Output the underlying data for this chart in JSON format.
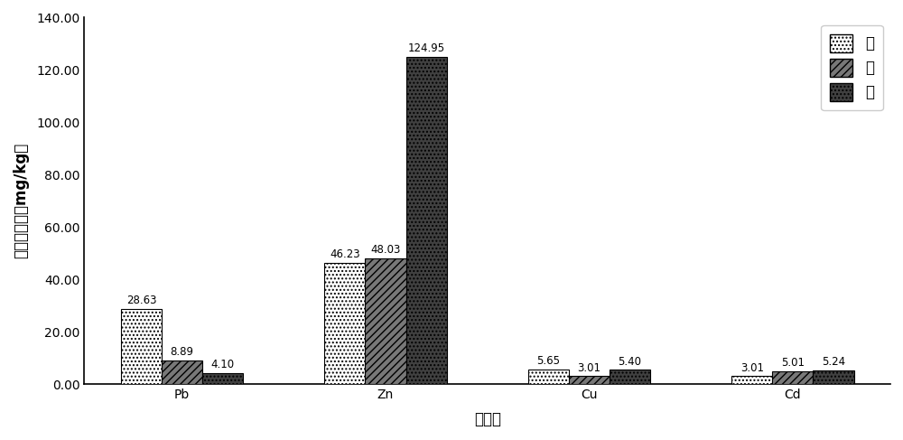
{
  "categories": [
    "Pb",
    "Zn",
    "Cu",
    "Cd"
  ],
  "series": {
    "根": [
      28.63,
      46.23,
      5.65,
      3.01
    ],
    "茎": [
      8.89,
      48.03,
      3.01,
      5.01
    ],
    "叶": [
      4.1,
      124.95,
      5.4,
      5.24
    ]
  },
  "annotations": {
    "根": [
      "28.63",
      "46.23",
      "5.65",
      "3.01"
    ],
    "茎": [
      "8.89",
      "48.03",
      "3.01",
      "5.01"
    ],
    "叶": [
      "4.10",
      "124.95",
      "5.40",
      "5.24"
    ]
  },
  "hatch_patterns": [
    "....",
    "////",
    "...."
  ],
  "facecolors": [
    "#ffffff",
    "#787878",
    "#404040"
  ],
  "edgecolors": [
    "#000000",
    "#000000",
    "#000000"
  ],
  "ylabel": "重金属含量（mg/kg）",
  "xlabel": "重金属",
  "ylim": [
    0,
    140
  ],
  "yticks": [
    0.0,
    20.0,
    40.0,
    60.0,
    80.0,
    100.0,
    120.0,
    140.0
  ],
  "ytick_labels": [
    "0.00",
    "20.00",
    "40.00",
    "60.00",
    "80.00",
    "100.00",
    "120.00",
    "140.00"
  ],
  "legend_labels": [
    "根",
    "茎",
    "叶"
  ],
  "bar_width": 0.2,
  "figsize": [
    10.0,
    4.87
  ],
  "dpi": 100,
  "annotation_fontsize": 8.5,
  "axis_label_fontsize": 12,
  "legend_fontsize": 12,
  "tick_fontsize": 10
}
